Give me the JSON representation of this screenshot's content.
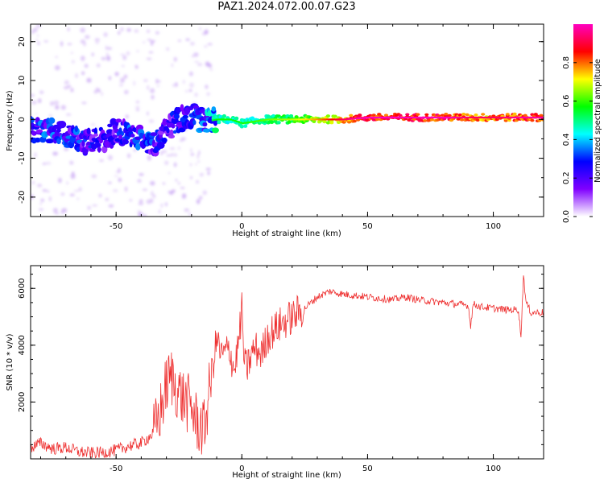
{
  "title": "PAZ1.2024.072.00.07.G23",
  "chart_data": [
    {
      "type": "heatmap",
      "xlabel": "Height of straight line (km)",
      "ylabel": "Frequency (Hz)",
      "xlim": [
        -84,
        120
      ],
      "ylim": [
        -25,
        24.5
      ],
      "x_ticks": [
        -50,
        0,
        50,
        100
      ],
      "y_ticks": [
        20,
        10,
        0,
        -10,
        -20
      ],
      "colorbar": {
        "label": "Normalized spectral amplitude",
        "range": [
          0,
          1
        ],
        "ticks": [
          0.0,
          0.2,
          0.4,
          0.6,
          0.8
        ],
        "colormap": [
          "#ffffff",
          "#8000ff",
          "#0000ff",
          "#00ffff",
          "#00ff00",
          "#ffff00",
          "#ff0000",
          "#ff00c0"
        ]
      },
      "ridge": {
        "x": [
          -84,
          -78,
          -70,
          -62,
          -55,
          -50,
          -45,
          -40,
          -35,
          -30,
          -25,
          -20,
          -15,
          -10,
          -5,
          0,
          10,
          20,
          30,
          40,
          50,
          60,
          70,
          80,
          90,
          100,
          110,
          120
        ],
        "y": [
          -3,
          -3,
          -4,
          -6,
          -5,
          -3,
          -4,
          -5,
          -6,
          -3,
          0,
          1,
          -0.5,
          0,
          0,
          -1,
          0,
          0,
          0,
          0,
          0.5,
          0.5,
          0.5,
          0.5,
          0.5,
          0.5,
          0.5,
          0.5
        ],
        "amplitude": [
          0.35,
          0.35,
          0.35,
          0.3,
          0.25,
          0.25,
          0.35,
          0.35,
          0.3,
          0.25,
          0.3,
          0.3,
          0.4,
          0.5,
          0.5,
          0.5,
          0.55,
          0.6,
          0.7,
          0.85,
          0.95,
          0.95,
          0.95,
          0.95,
          0.85,
          0.85,
          0.9,
          0.9
        ]
      }
    },
    {
      "type": "line",
      "xlabel": "Height of straight line (km)",
      "ylabel": "SNR (10 * v/v)",
      "xlim": [
        -84,
        120
      ],
      "ylim": [
        0,
        6800
      ],
      "x_ticks": [
        -50,
        0,
        50,
        100
      ],
      "y_ticks": [
        2000,
        4000,
        6000
      ],
      "color": "#ee3030",
      "series": [
        {
          "x": [
            -84,
            -80,
            -75,
            -70,
            -65,
            -60,
            -55,
            -50,
            -45,
            -40,
            -35,
            -32,
            -30,
            -28,
            -25,
            -22,
            -20,
            -18,
            -15,
            -12,
            -10,
            -8,
            -5,
            -3,
            -1,
            0,
            1,
            2,
            5,
            8,
            10,
            15,
            20,
            25,
            30,
            35,
            40,
            45,
            50,
            55,
            60,
            65,
            70,
            75,
            80,
            85,
            90,
            91,
            92,
            95,
            100,
            105,
            110,
            111,
            112,
            113,
            115,
            120
          ],
          "y": [
            400,
            550,
            350,
            400,
            250,
            200,
            220,
            300,
            450,
            550,
            900,
            1800,
            2600,
            2900,
            2300,
            2000,
            1800,
            1300,
            1000,
            3000,
            4200,
            3600,
            3900,
            3100,
            4300,
            5300,
            3300,
            3200,
            3900,
            3700,
            4300,
            4700,
            5000,
            5300,
            5700,
            5900,
            5800,
            5750,
            5700,
            5650,
            5600,
            5700,
            5600,
            5550,
            5500,
            5450,
            5400,
            4700,
            5450,
            5350,
            5300,
            5250,
            5250,
            4300,
            6500,
            5500,
            5150,
            5150
          ]
        }
      ]
    }
  ]
}
